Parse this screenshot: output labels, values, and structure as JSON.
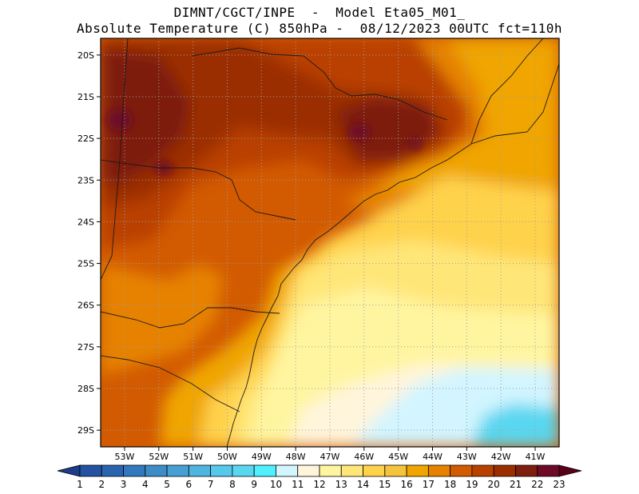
{
  "header": {
    "line1": "DIMNT/CGCT/INPE  -  Model Eta05_M01_",
    "line2": "Absolute Temperature (C) 850hPa -  08/12/2023 00UTC fct=110h"
  },
  "map": {
    "region": "South/Southeast Brazil and adjacent South Atlantic",
    "lat_labels": [
      "20S",
      "21S",
      "22S",
      "23S",
      "24S",
      "25S",
      "26S",
      "27S",
      "28S",
      "29S"
    ],
    "lat_values": [
      -20,
      -21,
      -22,
      -23,
      -24,
      -25,
      -26,
      -27,
      -28,
      -29
    ],
    "lon_labels": [
      "53W",
      "52W",
      "51W",
      "50W",
      "49W",
      "48W",
      "47W",
      "46W",
      "45W",
      "44W",
      "43W",
      "42W",
      "41W"
    ],
    "lon_values": [
      -53,
      -52,
      -51,
      -50,
      -49,
      -48,
      -47,
      -46,
      -45,
      -44,
      -43,
      -42,
      -41
    ],
    "lon_range": [
      -53.7,
      -40.3
    ],
    "lat_range": [
      -29.4,
      -19.6
    ]
  },
  "colorbar": {
    "labels": [
      "1",
      "2",
      "3",
      "4",
      "5",
      "6",
      "7",
      "8",
      "9",
      "10",
      "11",
      "12",
      "13",
      "14",
      "15",
      "16",
      "17",
      "18",
      "19",
      "20",
      "21",
      "22",
      "23"
    ],
    "colors": [
      "#1e3c8c",
      "#2252a0",
      "#2a64b0",
      "#3278be",
      "#3c8cc8",
      "#46a0d4",
      "#50b4e0",
      "#56c8ec",
      "#5ad7f0",
      "#50f0ff",
      "#d2f5ff",
      "#fff5dc",
      "#fff5a0",
      "#ffe678",
      "#ffd24b",
      "#f5c33c",
      "#f0a500",
      "#e68200",
      "#d25a00",
      "#b94100",
      "#9b2d00",
      "#7d1e0f",
      "#6e0a28",
      "#5a0019"
    ]
  },
  "style": {
    "frame_color": "#000000",
    "grid_color": "#a0a0a0"
  }
}
